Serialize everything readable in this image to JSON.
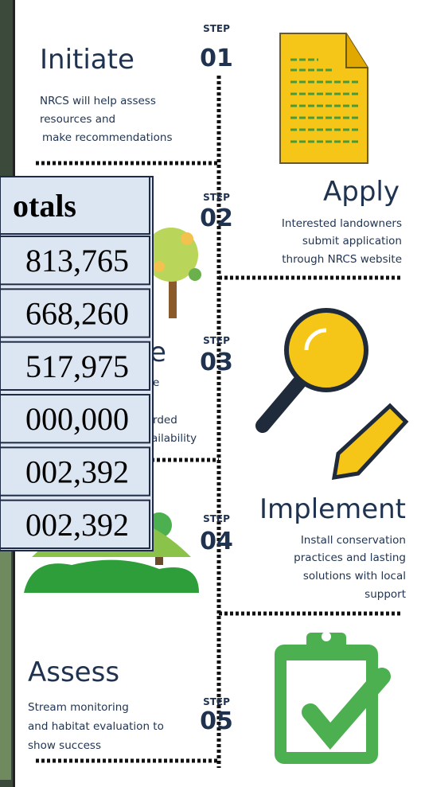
{
  "steps": [
    {
      "label": "STEP",
      "number": "01",
      "title": "Initiate",
      "description": [
        "NRCS will help assess",
        "resources and",
        "make recommendations"
      ]
    },
    {
      "label": "STEP",
      "number": "02",
      "title": "Apply",
      "description": [
        "Interested landowners",
        "submit application",
        "through NRCS website"
      ]
    },
    {
      "label": "STEP",
      "number": "03",
      "title": "e",
      "description": [
        "e",
        "rded",
        "ailability"
      ]
    },
    {
      "label": "STEP",
      "number": "04",
      "title": "Implement",
      "description": [
        "Install conservation",
        "practices and lasting",
        "solutions with local",
        "support"
      ]
    },
    {
      "label": "STEP",
      "number": "05",
      "title": "Assess",
      "description": [
        "Stream monitoring",
        "and habitat evaluation to",
        "show success"
      ]
    }
  ],
  "table": {
    "header": "otals",
    "rows": [
      "813,765",
      "668,260",
      "517,975",
      "000,000",
      "002,392",
      "002,392"
    ]
  }
}
